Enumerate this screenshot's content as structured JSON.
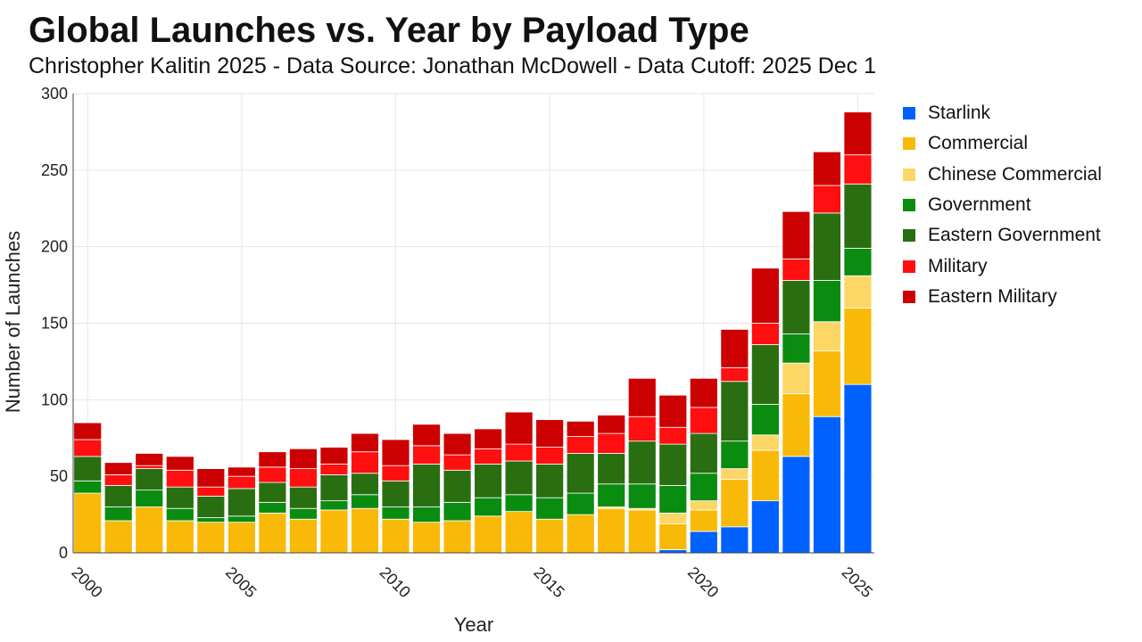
{
  "chart_data": {
    "type": "bar",
    "stacked": true,
    "title": "Global Launches vs. Year by Payload Type",
    "subtitle": "Christopher Kalitin 2025 - Data Source: Jonathan McDowell - Data Cutoff: 2025 Dec 1",
    "xlabel": "Year",
    "ylabel": "Number of Launches",
    "ylim": [
      0,
      300
    ],
    "yticks": [
      0,
      50,
      100,
      150,
      200,
      250,
      300
    ],
    "xticks": [
      2000,
      2005,
      2010,
      2015,
      2020,
      2025
    ],
    "grid": true,
    "legend_position": "right",
    "categories": [
      2000,
      2001,
      2002,
      2003,
      2004,
      2005,
      2006,
      2007,
      2008,
      2009,
      2010,
      2011,
      2012,
      2013,
      2014,
      2015,
      2016,
      2017,
      2018,
      2019,
      2020,
      2021,
      2022,
      2023,
      2024,
      2025
    ],
    "series": [
      {
        "name": "Starlink",
        "color": "#0061ff",
        "values": [
          0,
          0,
          0,
          0,
          0,
          0,
          0,
          0,
          0,
          0,
          0,
          0,
          0,
          0,
          0,
          0,
          0,
          0,
          0,
          2,
          14,
          17,
          34,
          63,
          89,
          110
        ]
      },
      {
        "name": "Commercial",
        "color": "#f9b908",
        "values": [
          39,
          21,
          30,
          21,
          20,
          20,
          26,
          22,
          28,
          29,
          22,
          20,
          21,
          24,
          27,
          22,
          25,
          29,
          28,
          17,
          14,
          31,
          33,
          41,
          43,
          50
        ]
      },
      {
        "name": "Chinese Commercial",
        "color": "#fcd766",
        "values": [
          0,
          0,
          0,
          0,
          0,
          0,
          0,
          0,
          0,
          0,
          0,
          0,
          0,
          0,
          0,
          0,
          0,
          1,
          1,
          7,
          6,
          7,
          10,
          20,
          19,
          21
        ]
      },
      {
        "name": "Government",
        "color": "#0a8c11",
        "values": [
          8,
          9,
          11,
          8,
          3,
          4,
          7,
          7,
          6,
          9,
          8,
          10,
          12,
          12,
          11,
          14,
          14,
          15,
          16,
          18,
          18,
          18,
          20,
          19,
          27,
          18
        ]
      },
      {
        "name": "Eastern Government",
        "color": "#2a6e12",
        "values": [
          16,
          14,
          14,
          14,
          14,
          18,
          13,
          14,
          17,
          14,
          17,
          28,
          21,
          22,
          22,
          22,
          26,
          20,
          28,
          27,
          26,
          39,
          39,
          35,
          44,
          42
        ]
      },
      {
        "name": "Military",
        "color": "#ff0f0f",
        "values": [
          11,
          7,
          2,
          11,
          6,
          8,
          10,
          12,
          7,
          14,
          10,
          12,
          10,
          10,
          11,
          11,
          11,
          13,
          16,
          11,
          17,
          9,
          14,
          14,
          18,
          19
        ]
      },
      {
        "name": "Eastern Military",
        "color": "#cc0000",
        "values": [
          11,
          8,
          8,
          9,
          12,
          6,
          10,
          13,
          11,
          12,
          17,
          14,
          14,
          13,
          21,
          18,
          10,
          12,
          25,
          21,
          19,
          25,
          36,
          31,
          22,
          28
        ]
      }
    ]
  }
}
